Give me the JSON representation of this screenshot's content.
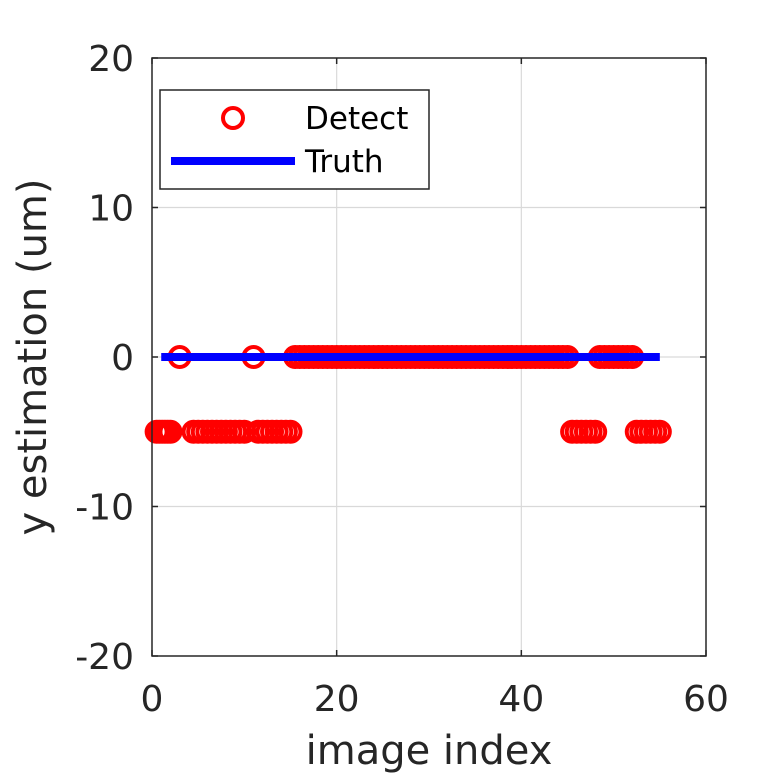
{
  "chart_data": {
    "type": "scatter",
    "title": "",
    "xlabel": "image index",
    "ylabel": "y estimation (um)",
    "xlim": [
      0,
      60
    ],
    "ylim": [
      -20,
      20
    ],
    "xticks": [
      0,
      20,
      40,
      60
    ],
    "yticks": [
      -20,
      -10,
      0,
      10,
      20
    ],
    "xtick_labels": [
      "0",
      "20",
      "40",
      "60"
    ],
    "ytick_labels": [
      "-20",
      "-10",
      "0",
      "10",
      "20"
    ],
    "grid": true,
    "legend_position": "top-left",
    "series": [
      {
        "name": "Detect",
        "kind": "scatter",
        "marker": "circle",
        "color": "#ff0000",
        "points": [
          [
            0.5,
            -5
          ],
          [
            0.8,
            -5
          ],
          [
            1.1,
            -5
          ],
          [
            1.4,
            -5
          ],
          [
            1.7,
            -5
          ],
          [
            2.0,
            -5
          ],
          [
            3.0,
            0
          ],
          [
            4.5,
            -5
          ],
          [
            5.0,
            -5
          ],
          [
            5.5,
            -5
          ],
          [
            6.0,
            -5
          ],
          [
            6.5,
            -5
          ],
          [
            7.0,
            -5
          ],
          [
            7.5,
            -5
          ],
          [
            8.0,
            -5
          ],
          [
            8.5,
            -5
          ],
          [
            9.0,
            -5
          ],
          [
            9.5,
            -5
          ],
          [
            10.0,
            -5
          ],
          [
            11.0,
            0
          ],
          [
            11.5,
            -5
          ],
          [
            12.0,
            -5
          ],
          [
            12.5,
            -5
          ],
          [
            13.0,
            -5
          ],
          [
            13.5,
            -5
          ],
          [
            14.0,
            -5
          ],
          [
            14.5,
            -5
          ],
          [
            15.0,
            -5
          ],
          [
            15.5,
            0
          ],
          [
            16.0,
            0
          ],
          [
            16.5,
            0
          ],
          [
            17.0,
            0
          ],
          [
            17.5,
            0
          ],
          [
            18.0,
            0
          ],
          [
            18.5,
            0
          ],
          [
            19.0,
            0
          ],
          [
            19.5,
            0
          ],
          [
            20.0,
            0
          ],
          [
            20.5,
            0
          ],
          [
            21.0,
            0
          ],
          [
            21.5,
            0
          ],
          [
            22.0,
            0
          ],
          [
            22.5,
            0
          ],
          [
            23.0,
            0
          ],
          [
            23.5,
            0
          ],
          [
            24.0,
            0
          ],
          [
            24.5,
            0
          ],
          [
            25.0,
            0
          ],
          [
            25.5,
            0
          ],
          [
            26.0,
            0
          ],
          [
            26.5,
            0
          ],
          [
            27.0,
            0
          ],
          [
            27.5,
            0
          ],
          [
            28.0,
            0
          ],
          [
            28.5,
            0
          ],
          [
            29.0,
            0
          ],
          [
            29.5,
            0
          ],
          [
            30.0,
            0
          ],
          [
            30.5,
            0
          ],
          [
            31.0,
            0
          ],
          [
            31.5,
            0
          ],
          [
            32.0,
            0
          ],
          [
            32.5,
            0
          ],
          [
            33.0,
            0
          ],
          [
            33.5,
            0
          ],
          [
            34.0,
            0
          ],
          [
            34.5,
            0
          ],
          [
            35.0,
            0
          ],
          [
            35.5,
            0
          ],
          [
            36.0,
            0
          ],
          [
            36.5,
            0
          ],
          [
            37.0,
            0
          ],
          [
            37.5,
            0
          ],
          [
            38.0,
            0
          ],
          [
            38.5,
            0
          ],
          [
            39.0,
            0
          ],
          [
            39.5,
            0
          ],
          [
            40.0,
            0
          ],
          [
            40.5,
            0
          ],
          [
            41.0,
            0
          ],
          [
            41.5,
            0
          ],
          [
            42.0,
            0
          ],
          [
            42.5,
            0
          ],
          [
            43.0,
            0
          ],
          [
            43.5,
            0
          ],
          [
            44.0,
            0
          ],
          [
            44.5,
            0
          ],
          [
            45.0,
            0
          ],
          [
            45.5,
            -5
          ],
          [
            46.0,
            -5
          ],
          [
            46.5,
            -5
          ],
          [
            47.0,
            -5
          ],
          [
            47.5,
            -5
          ],
          [
            48.0,
            -5
          ],
          [
            48.5,
            0
          ],
          [
            49.0,
            0
          ],
          [
            49.5,
            0
          ],
          [
            50.0,
            0
          ],
          [
            50.5,
            0
          ],
          [
            51.0,
            0
          ],
          [
            51.5,
            0
          ],
          [
            52.0,
            0
          ],
          [
            52.5,
            -5
          ],
          [
            53.0,
            -5
          ],
          [
            53.5,
            -5
          ],
          [
            54.0,
            -5
          ],
          [
            54.5,
            -5
          ],
          [
            55.0,
            -5
          ]
        ]
      },
      {
        "name": "Truth",
        "kind": "line",
        "color": "#0000ff",
        "points": [
          [
            1,
            0
          ],
          [
            55,
            0
          ]
        ]
      }
    ]
  },
  "colors": {
    "axis": "#262626",
    "grid": "#d9d9d9",
    "detect": "#ff0000",
    "truth": "#0000ff"
  }
}
